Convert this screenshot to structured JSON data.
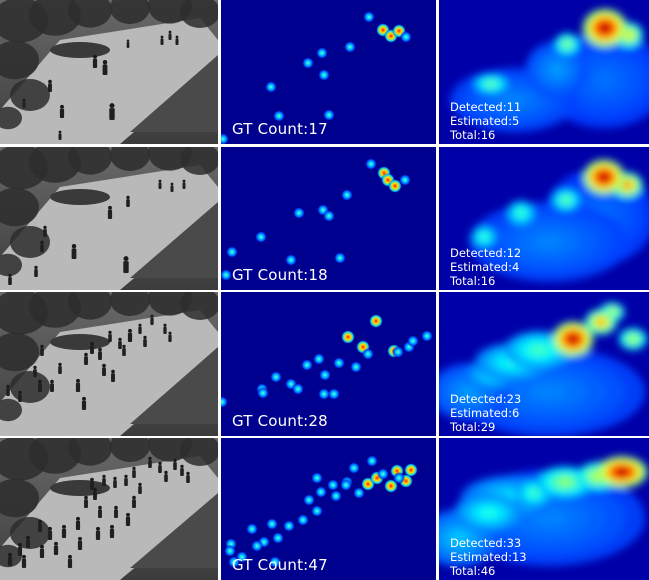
{
  "rows": [
    {
      "gt": "GT Count:17",
      "detected": "Detected:11",
      "estimated": "Estimated:5",
      "total": "Total:16"
    },
    {
      "gt": "GT Count:18",
      "detected": "Detected:12",
      "estimated": "Estimated:4",
      "total": "Total:16"
    },
    {
      "gt": "GT Count:28",
      "detected": "Detected:23",
      "estimated": "Estimated:6",
      "total": "Total:29"
    },
    {
      "gt": "GT Count:47",
      "detected": "Detected:33",
      "estimated": "Estimated:13",
      "total": "Total:46"
    }
  ],
  "colors": {
    "heat_background": "#00008f",
    "separator": "#ffffff",
    "text": "#ffffff"
  }
}
